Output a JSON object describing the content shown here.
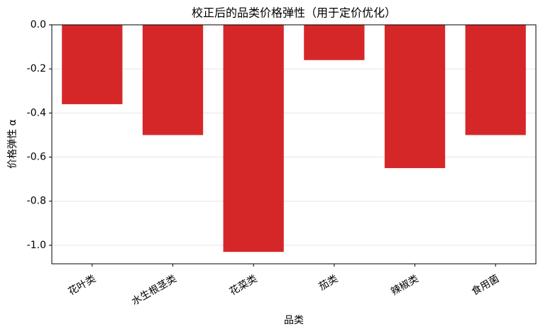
{
  "chart_data": {
    "type": "bar",
    "title": "校正后的品类价格弹性（用于定价优化）",
    "x_label": "品类",
    "y_label": "价格弹性 α",
    "categories": [
      "花叶类",
      "水生根茎类",
      "花菜类",
      "茄类",
      "辣椒类",
      "食用菌"
    ],
    "values": [
      -0.36,
      -0.5,
      -1.03,
      -0.16,
      -0.65,
      -0.5
    ],
    "color": "#d62728",
    "ylim": [
      -1.084,
      0
    ],
    "yticks": [
      {
        "value": 0,
        "label": "0.0"
      },
      {
        "value": -0.2,
        "label": "-0.2"
      },
      {
        "value": -0.4,
        "label": "-0.4"
      },
      {
        "value": -0.6,
        "label": "-0.6"
      },
      {
        "value": -0.8,
        "label": "-0.8"
      },
      {
        "value": -1.0,
        "label": "-1.0"
      }
    ],
    "grid": true
  }
}
